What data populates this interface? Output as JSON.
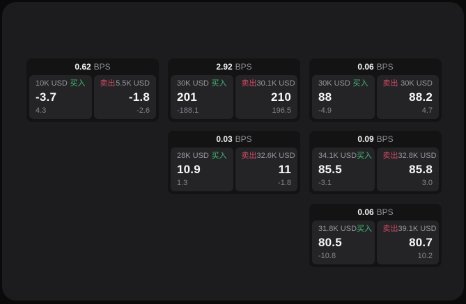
{
  "labels": {
    "bps": "BPS",
    "buy": "买入",
    "sell": "卖出"
  },
  "colors": {
    "page_bg": "#0a0a0a",
    "panel_bg": "#1c1c1e",
    "card_bg": "#131314",
    "subpanel_bg": "#242427",
    "buy_green": "#40bd74",
    "sell_red": "#d04a64",
    "value_white": "#f6f6f7",
    "muted_gray": "#98989d"
  },
  "cards": [
    {
      "bps": "0.62",
      "buy": {
        "amount": "10K USD",
        "value": "-3.7",
        "delta": "4.3"
      },
      "sell": {
        "amount": "5.5K USD",
        "value": "-1.8",
        "delta": "-2.6"
      }
    },
    {
      "bps": "2.92",
      "buy": {
        "amount": "30K USD",
        "value": "201",
        "delta": "-188.1"
      },
      "sell": {
        "amount": "30.1K USD",
        "value": "210",
        "delta": "196.5"
      }
    },
    {
      "bps": "0.06",
      "buy": {
        "amount": "30K USD",
        "value": "88",
        "delta": "-4.9"
      },
      "sell": {
        "amount": "30K USD",
        "value": "88.2",
        "delta": "4.7"
      }
    },
    {
      "bps": "0.03",
      "buy": {
        "amount": "28K USD",
        "value": "10.9",
        "delta": "1.3"
      },
      "sell": {
        "amount": "32.6K USD",
        "value": "11",
        "delta": "-1.8"
      }
    },
    {
      "bps": "0.09",
      "buy": {
        "amount": "34.1K USD",
        "value": "85.5",
        "delta": "-3.1"
      },
      "sell": {
        "amount": "32.8K USD",
        "value": "85.8",
        "delta": "3.0"
      }
    },
    {
      "bps": "0.06",
      "buy": {
        "amount": "31.8K USD",
        "value": "80.5",
        "delta": "-10.8"
      },
      "sell": {
        "amount": "39.1K USD",
        "value": "80.7",
        "delta": "10.2"
      }
    }
  ]
}
